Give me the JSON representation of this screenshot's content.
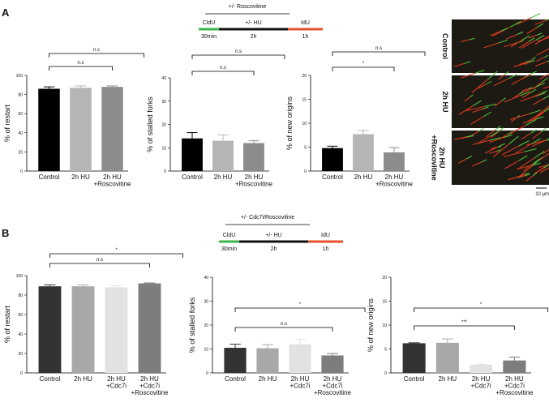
{
  "panels": {
    "a": {
      "label": "A",
      "schematic": {
        "title": "+/- Roscovitine",
        "steps": [
          "CldU",
          "+/- HU",
          "IdU"
        ],
        "times": [
          "30min",
          "2h",
          "1h"
        ]
      },
      "images": {
        "labels": [
          "Control",
          "2h HU",
          "2h HU\n+Roscovitine"
        ],
        "scale_bar": "10 µm"
      }
    },
    "b": {
      "label": "B",
      "schematic": {
        "title": "+/- Cdc7i/Roscovitine",
        "steps": [
          "CldU",
          "+/- HU",
          "IdU"
        ],
        "times": [
          "30min",
          "2h",
          "1h"
        ]
      }
    }
  },
  "chart_data": [
    {
      "type": "bar",
      "y_label": "% of restart",
      "categories": [
        "Control",
        "2h HU",
        "2h HU\n+Roscovitine"
      ],
      "values": [
        86,
        87,
        88
      ],
      "errors": [
        2,
        2,
        1
      ],
      "colors": [
        "#000000",
        "#b5b5b5",
        "#8c8c8c"
      ],
      "ylim": [
        0,
        100
      ],
      "yticks": [
        0,
        20,
        40,
        60,
        80,
        100
      ],
      "annotations": [
        "n.s",
        "n.s"
      ]
    },
    {
      "type": "bar",
      "y_label": "% of stalled forks",
      "categories": [
        "Control",
        "2h HU",
        "2h HU\n+Roscovitine"
      ],
      "values": [
        14,
        13,
        12
      ],
      "errors": [
        2.5,
        2.5,
        1
      ],
      "colors": [
        "#000000",
        "#b5b5b5",
        "#8c8c8c"
      ],
      "ylim": [
        0,
        40
      ],
      "yticks": [
        0,
        10,
        20,
        30,
        40
      ],
      "annotations": [
        "n.s",
        "n.s"
      ]
    },
    {
      "type": "bar",
      "y_label": "% of new origins",
      "categories": [
        "Control",
        "2h HU",
        "2h HU\n+Roscovitine"
      ],
      "values": [
        4.8,
        7.7,
        3.9
      ],
      "errors": [
        0.4,
        0.8,
        1
      ],
      "colors": [
        "#000000",
        "#b5b5b5",
        "#8c8c8c"
      ],
      "ylim": [
        0,
        20
      ],
      "yticks": [
        0,
        5,
        10,
        15,
        20
      ],
      "annotations": [
        "*",
        "n.s"
      ]
    },
    {
      "type": "bar",
      "y_label": "% of restart",
      "categories": [
        "Control",
        "2h HU",
        "2h HU\n+Cdc7i",
        "2h HU\n+Cdc7i\n+Roscovitine"
      ],
      "values": [
        89,
        89,
        88,
        92
      ],
      "errors": [
        1.5,
        1.5,
        1.5,
        0.5
      ],
      "colors": [
        "#333333",
        "#a8a8a8",
        "#e2e2e2",
        "#7d7d7d"
      ],
      "ylim": [
        0,
        100
      ],
      "yticks": [
        0,
        20,
        40,
        60,
        80,
        100
      ],
      "annotations": [
        "n.s",
        "*"
      ]
    },
    {
      "type": "bar",
      "y_label": "% of stalled forks",
      "categories": [
        "Control",
        "2h HU",
        "2h HU\n+Cdc7i",
        "2h HU\n+Cdc7i\n+Roscovitine"
      ],
      "values": [
        10.5,
        10.3,
        12,
        7.3
      ],
      "errors": [
        1.5,
        1.5,
        2,
        0.8
      ],
      "colors": [
        "#333333",
        "#a8a8a8",
        "#e2e2e2",
        "#7d7d7d"
      ],
      "ylim": [
        0,
        40
      ],
      "yticks": [
        0,
        10,
        20,
        30,
        40
      ],
      "annotations": [
        "n.s",
        "*"
      ]
    },
    {
      "type": "bar",
      "y_label": "% of new origins",
      "categories": [
        "Control",
        "2h HU",
        "2h HU\n+Cdc7i",
        "2h HU\n+Cdc7i\n+Roscovitine"
      ],
      "values": [
        6.2,
        6.3,
        1.7,
        2.6
      ],
      "errors": [
        0.1,
        0.8,
        0.1,
        0.7
      ],
      "colors": [
        "#333333",
        "#a8a8a8",
        "#e2e2e2",
        "#7d7d7d"
      ],
      "ylim": [
        0,
        20
      ],
      "yticks": [
        0,
        5,
        10,
        15,
        20
      ],
      "annotations": [
        "***",
        "*"
      ]
    }
  ]
}
